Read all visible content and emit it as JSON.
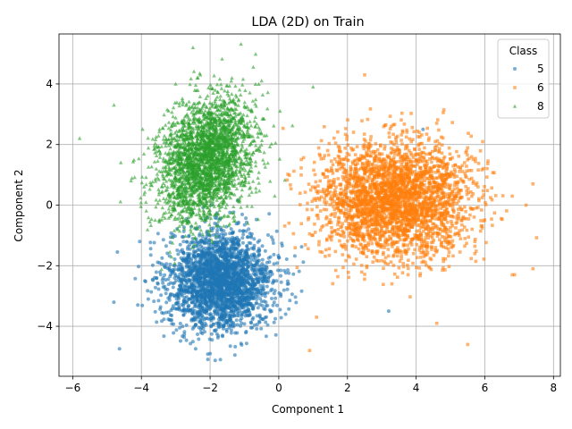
{
  "chart_data": {
    "type": "scatter",
    "title": "LDA (2D) on Train",
    "xlabel": "Component 1",
    "ylabel": "Component 2",
    "xlim": [
      -6.4,
      8.2
    ],
    "ylim": [
      -5.65,
      5.65
    ],
    "xticks": [
      -6,
      -4,
      -2,
      0,
      2,
      4,
      6,
      8
    ],
    "yticks": [
      -4,
      -2,
      0,
      2,
      4
    ],
    "grid": true,
    "legend": {
      "title": "Class",
      "placement": "upper right"
    },
    "series": [
      {
        "name": "5",
        "color": "#1f77b4",
        "marker": "circle",
        "center": [
          -1.7,
          -2.5
        ],
        "sd": [
          0.75,
          0.8
        ],
        "corr": 0.0,
        "count": 2600,
        "n_points_approx": 5000,
        "outliers": [
          [
            -4.7,
            -1.55
          ],
          [
            -3.9,
            -2.5
          ],
          [
            -3.8,
            -3.1
          ],
          [
            -1.7,
            -5.1
          ],
          [
            -2.0,
            -4.9
          ],
          [
            0.2,
            -3.6
          ],
          [
            3.2,
            -3.5
          ],
          [
            4.2,
            2.5
          ],
          [
            -4.05,
            -1.2
          ]
        ]
      },
      {
        "name": "6",
        "color": "#ff7f0e",
        "marker": "square",
        "center": [
          3.4,
          0.2
        ],
        "sd": [
          1.1,
          0.95
        ],
        "corr": 0.0,
        "count": 3000,
        "n_points_approx": 5000,
        "outliers": [
          [
            7.4,
            0.7
          ],
          [
            7.4,
            -2.1
          ],
          [
            7.2,
            0.0
          ],
          [
            6.8,
            -2.3
          ],
          [
            5.5,
            -4.6
          ],
          [
            2.5,
            4.3
          ],
          [
            0.9,
            -4.8
          ],
          [
            4.6,
            -3.9
          ],
          [
            1.1,
            -3.7
          ]
        ]
      },
      {
        "name": "8",
        "color": "#2ca02c",
        "marker": "triangle",
        "center": [
          -2.15,
          1.5
        ],
        "sd": [
          0.7,
          1.0
        ],
        "corr": 0.3,
        "count": 2800,
        "n_points_approx": 5000,
        "outliers": [
          [
            -5.8,
            2.2
          ],
          [
            -4.8,
            3.3
          ],
          [
            -4.6,
            1.4
          ],
          [
            -2.5,
            5.2
          ],
          [
            1.0,
            3.9
          ],
          [
            -0.5,
            4.1
          ],
          [
            -4.3,
            0.8
          ]
        ]
      }
    ]
  }
}
